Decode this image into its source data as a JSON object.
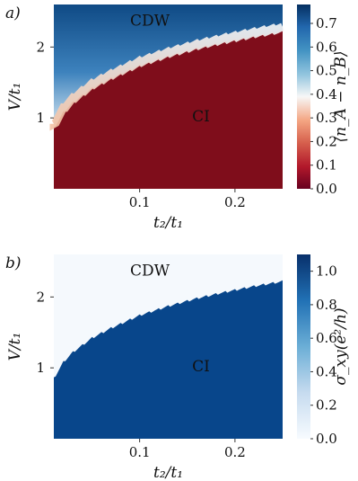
{
  "chart_data": [
    {
      "type": "heatmap",
      "panel_label": "a)",
      "xlabel": "t₂/t₁",
      "ylabel": "V/t₁",
      "xlim": [
        0.01,
        0.25
      ],
      "ylim": [
        0.0,
        2.6
      ],
      "xticks": [
        0.1,
        0.2
      ],
      "xtick_labels": [
        "0.1",
        "0.2"
      ],
      "yticks": [
        1,
        2
      ],
      "ytick_labels": [
        "1",
        "2"
      ],
      "colorbar": {
        "label": "⟨n_A − n_B⟩",
        "min": 0.0,
        "max": 0.78,
        "cmap": "RdBu",
        "ticks": [
          0.0,
          0.1,
          0.2,
          0.3,
          0.4,
          0.5,
          0.6,
          0.7
        ],
        "tick_labels": [
          "0.0",
          "0.1",
          "0.2",
          "0.3",
          "0.4",
          "0.5",
          "0.6",
          "0.7"
        ]
      },
      "regions": [
        {
          "label": "CDW",
          "x": 0.09,
          "y": 2.3
        },
        {
          "label": "CI",
          "x": 0.155,
          "y": 0.95
        }
      ],
      "phase_boundary": {
        "x": [
          0.01,
          0.02,
          0.03,
          0.05,
          0.07,
          0.1,
          0.13,
          0.16,
          0.19,
          0.22,
          0.25
        ],
        "y": [
          0.85,
          1.08,
          1.22,
          1.42,
          1.56,
          1.74,
          1.87,
          1.98,
          2.07,
          2.15,
          2.22
        ]
      }
    },
    {
      "type": "heatmap",
      "panel_label": "b)",
      "xlabel": "t₂/t₁",
      "ylabel": "V/t₁",
      "xlim": [
        0.01,
        0.25
      ],
      "ylim": [
        0.0,
        2.6
      ],
      "xticks": [
        0.1,
        0.2
      ],
      "xtick_labels": [
        "0.1",
        "0.2"
      ],
      "yticks": [
        1,
        2
      ],
      "ytick_labels": [
        "1",
        "2"
      ],
      "colorbar": {
        "label": "σ_xy(e²/h)",
        "min": 0.0,
        "max": 1.1,
        "cmap": "Blues",
        "ticks": [
          0.0,
          0.2,
          0.4,
          0.6,
          0.8,
          1.0
        ],
        "tick_labels": [
          "0.0",
          "0.2",
          "0.4",
          "0.6",
          "0.8",
          "1.0"
        ]
      },
      "regions": [
        {
          "label": "CDW",
          "x": 0.09,
          "y": 2.3
        },
        {
          "label": "CI",
          "x": 0.155,
          "y": 0.95
        }
      ],
      "phase_boundary": {
        "x": [
          0.01,
          0.02,
          0.03,
          0.05,
          0.07,
          0.1,
          0.13,
          0.16,
          0.19,
          0.22,
          0.25
        ],
        "y": [
          0.85,
          1.08,
          1.22,
          1.42,
          1.56,
          1.74,
          1.87,
          1.98,
          2.07,
          2.15,
          2.22
        ]
      }
    }
  ]
}
